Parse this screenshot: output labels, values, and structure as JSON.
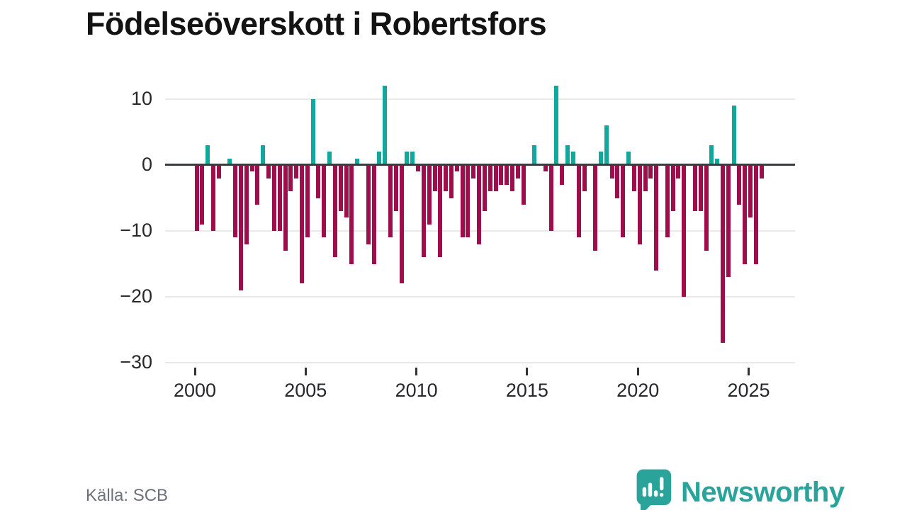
{
  "title": "Födelseöverskott i Robertsfors",
  "source": "Källa: SCB",
  "branding": {
    "wordmark": "Newsworthy",
    "icon": "newsworthy-speech-bubble-bar-chart-icon"
  },
  "chart_data": {
    "type": "bar",
    "title": "Födelseöverskott i Robertsfors",
    "x_unit": "quarter",
    "start": "2000-Q1",
    "end": "2025-Q3",
    "values": [
      -10,
      -9,
      3,
      -10,
      -2,
      0,
      1,
      -11,
      -19,
      -12,
      -1,
      -6,
      3,
      -2,
      -10,
      -10,
      -13,
      -4,
      -2,
      -18,
      -11,
      10,
      -5,
      -11,
      2,
      -14,
      -7,
      -8,
      -15,
      1,
      0,
      -12,
      -15,
      2,
      12,
      -11,
      -7,
      -18,
      2,
      2,
      -1,
      -14,
      -9,
      -4,
      -14,
      -4,
      -5,
      -1,
      -11,
      -11,
      -2,
      -12,
      -7,
      -4,
      -4,
      -3,
      -3,
      -4,
      -2,
      -6,
      0,
      3,
      0,
      -1,
      -10,
      12,
      -3,
      3,
      2,
      -11,
      -4,
      0,
      -13,
      2,
      6,
      -2,
      -5,
      -11,
      2,
      -4,
      -12,
      -4,
      -2,
      -16,
      0,
      -11,
      -7,
      -2,
      -20,
      0,
      -7,
      -7,
      -13,
      3,
      1,
      -27,
      -17,
      9,
      -6,
      -15,
      -8,
      -15,
      -2
    ],
    "xticks": [
      2000,
      2005,
      2010,
      2015,
      2020,
      2025
    ],
    "yticks": [
      10,
      0,
      -10,
      -20,
      -30
    ],
    "ylim": [
      -30,
      13
    ],
    "grid": "horizontal",
    "legend": "none",
    "colors": {
      "positive_bar": "#10a79d",
      "negative_bar": "#9e0d4c",
      "zero_axis": "#3a3d40",
      "gridline": "#e9e9e9",
      "tick_text": "#26282b",
      "title_text": "#131313",
      "source_text": "#6d717a",
      "brand_teal": "#2aa39b"
    }
  }
}
